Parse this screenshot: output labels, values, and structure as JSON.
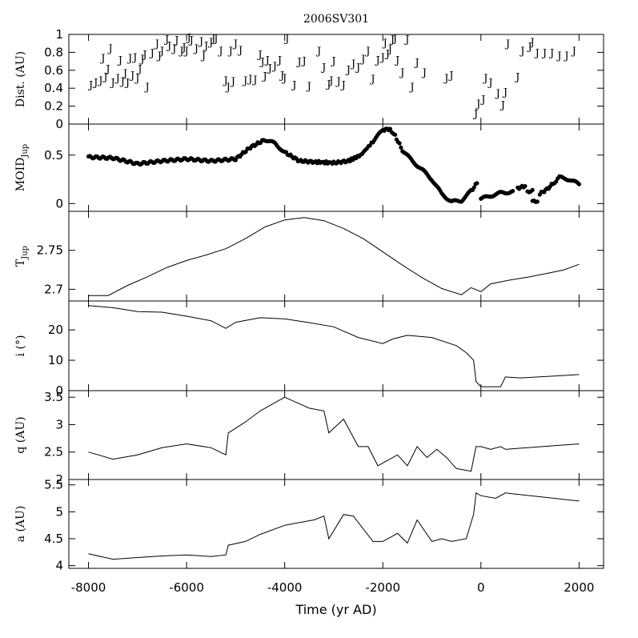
{
  "chart_data": {
    "title": "2006SV301",
    "xlabel": "Time (yr AD)",
    "xlim": [
      -8400,
      2500
    ],
    "xticks": [
      -8000,
      -6000,
      -4000,
      -2000,
      0,
      2000
    ],
    "xtick_labels": [
      "-8000",
      "-6000",
      "-4000",
      "-2000",
      "0",
      "2000"
    ],
    "panels": [
      {
        "id": "dist",
        "type": "scatter",
        "marker": "J",
        "ylabel": "Dist. (AU)",
        "ylim": [
          0,
          1
        ],
        "yticks": [
          0,
          0.2,
          0.4,
          0.6,
          0.8,
          1
        ],
        "ytick_labels": [
          "0",
          "0.2",
          "0.4",
          "0.6",
          "0.8",
          "1"
        ],
        "points": [
          [
            -7950,
            0.44
          ],
          [
            -7850,
            0.47
          ],
          [
            -7750,
            0.49
          ],
          [
            -7650,
            0.53
          ],
          [
            -7600,
            0.62
          ],
          [
            -7500,
            0.47
          ],
          [
            -7400,
            0.52
          ],
          [
            -7300,
            0.48
          ],
          [
            -7200,
            0.47
          ],
          [
            -7100,
            0.55
          ],
          [
            -7000,
            0.52
          ],
          [
            -6900,
            0.73
          ],
          [
            -6800,
            0.42
          ],
          [
            -7700,
            0.74
          ],
          [
            -7550,
            0.85
          ],
          [
            -7350,
            0.72
          ],
          [
            -7250,
            0.57
          ],
          [
            -7150,
            0.74
          ],
          [
            -7050,
            0.75
          ],
          [
            -6950,
            0.62
          ],
          [
            -6850,
            0.78
          ],
          [
            -6700,
            0.8
          ],
          [
            -6600,
            0.9
          ],
          [
            -6550,
            0.77
          ],
          [
            -6500,
            0.82
          ],
          [
            -6400,
            0.95
          ],
          [
            -6350,
            0.88
          ],
          [
            -6250,
            0.85
          ],
          [
            -6200,
            0.94
          ],
          [
            -6100,
            0.82
          ],
          [
            -6050,
            0.86
          ],
          [
            -6000,
            0.82
          ],
          [
            -5950,
            0.97
          ],
          [
            -5900,
            0.94
          ],
          [
            -5800,
            0.85
          ],
          [
            -5700,
            0.93
          ],
          [
            -5650,
            0.77
          ],
          [
            -5600,
            0.88
          ],
          [
            -5500,
            0.92
          ],
          [
            -5450,
            0.96
          ],
          [
            -5400,
            0.96
          ],
          [
            -5300,
            0.82
          ],
          [
            -5200,
            0.49
          ],
          [
            -5150,
            0.42
          ],
          [
            -5100,
            0.82
          ],
          [
            -5050,
            0.48
          ],
          [
            -5000,
            0.9
          ],
          [
            -4900,
            0.83
          ],
          [
            -4800,
            0.49
          ],
          [
            -4700,
            0.51
          ],
          [
            -4600,
            0.5
          ],
          [
            -4500,
            0.78
          ],
          [
            -4450,
            0.7
          ],
          [
            -4400,
            0.54
          ],
          [
            -4350,
            0.72
          ],
          [
            -4300,
            0.63
          ],
          [
            -4200,
            0.65
          ],
          [
            -4100,
            0.72
          ],
          [
            -4050,
            0.55
          ],
          [
            -4000,
            0.52
          ],
          [
            -3950,
            0.96
          ],
          [
            -3800,
            0.44
          ],
          [
            -3700,
            0.7
          ],
          [
            -3600,
            0.71
          ],
          [
            -3500,
            0.43
          ],
          [
            -3300,
            0.82
          ],
          [
            -3200,
            0.64
          ],
          [
            -3100,
            0.45
          ],
          [
            -3050,
            0.49
          ],
          [
            -3000,
            0.71
          ],
          [
            -2900,
            0.48
          ],
          [
            -2800,
            0.44
          ],
          [
            -2700,
            0.61
          ],
          [
            -2600,
            0.68
          ],
          [
            -2500,
            0.64
          ],
          [
            -2400,
            0.73
          ],
          [
            -2300,
            0.82
          ],
          [
            -2200,
            0.51
          ],
          [
            -2100,
            0.72
          ],
          [
            -2000,
            0.75
          ],
          [
            -1950,
            0.91
          ],
          [
            -1900,
            0.79
          ],
          [
            -1850,
            0.84
          ],
          [
            -1800,
            0.95
          ],
          [
            -1750,
            0.96
          ],
          [
            -1700,
            0.72
          ],
          [
            -1600,
            0.58
          ],
          [
            -1500,
            0.95
          ],
          [
            -1400,
            0.42
          ],
          [
            -1300,
            0.69
          ],
          [
            -1150,
            0.58
          ],
          [
            -700,
            0.52
          ],
          [
            -600,
            0.55
          ],
          [
            -100,
            0.12
          ],
          [
            -50,
            0.23
          ],
          [
            50,
            0.28
          ],
          [
            100,
            0.52
          ],
          [
            200,
            0.47
          ],
          [
            350,
            0.35
          ],
          [
            450,
            0.22
          ],
          [
            500,
            0.36
          ],
          [
            550,
            0.9
          ],
          [
            750,
            0.53
          ],
          [
            850,
            0.82
          ],
          [
            1000,
            0.87
          ],
          [
            1050,
            0.92
          ],
          [
            1150,
            0.8
          ],
          [
            1300,
            0.8
          ],
          [
            1450,
            0.8
          ],
          [
            1600,
            0.77
          ],
          [
            1750,
            0.77
          ],
          [
            1900,
            0.82
          ]
        ]
      },
      {
        "id": "moid",
        "type": "scatter",
        "marker": "dot",
        "ylabel": "MOID",
        "ylabel_sub": "Jup",
        "ylim": [
          -0.08,
          0.82
        ],
        "yticks": [
          0,
          0.5
        ],
        "ytick_labels": [
          "0",
          "0.5"
        ],
        "segments": [
          [
            [
              -8000,
              0.48
            ],
            [
              -7500,
              0.47
            ],
            [
              -7000,
              0.41
            ],
            [
              -6500,
              0.44
            ],
            [
              -6000,
              0.46
            ],
            [
              -5500,
              0.44
            ],
            [
              -5000,
              0.46
            ],
            [
              -4700,
              0.58
            ],
            [
              -4400,
              0.66
            ],
            [
              -4200,
              0.62
            ],
            [
              -4000,
              0.53
            ],
            [
              -3700,
              0.44
            ],
            [
              -3400,
              0.43
            ],
            [
              -3000,
              0.42
            ],
            [
              -2700,
              0.44
            ],
            [
              -2450,
              0.5
            ],
            [
              -2200,
              0.64
            ],
            [
              -2000,
              0.76
            ],
            [
              -1850,
              0.77
            ],
            [
              -1750,
              0.7
            ],
            [
              -1600,
              0.55
            ],
            [
              -1400,
              0.44
            ],
            [
              -1200,
              0.35
            ],
            [
              -1000,
              0.25
            ],
            [
              -800,
              0.1
            ],
            [
              -600,
              0.02
            ],
            [
              -400,
              0.03
            ],
            [
              -200,
              0.13
            ],
            [
              -80,
              0.21
            ]
          ],
          [
            [
              0,
              0.05
            ],
            [
              200,
              0.08
            ],
            [
              400,
              0.11
            ],
            [
              600,
              0.12
            ],
            [
              650,
              0.13
            ]
          ],
          [
            [
              750,
              0.16
            ],
            [
              900,
              0.18
            ]
          ],
          [
            [
              950,
              0.12
            ],
            [
              1050,
              0.14
            ]
          ],
          [
            [
              1050,
              0.02
            ],
            [
              1150,
              0.02
            ]
          ],
          [
            [
              1200,
              0.1
            ],
            [
              1350,
              0.15
            ],
            [
              1500,
              0.22
            ],
            [
              1600,
              0.27
            ],
            [
              1800,
              0.25
            ],
            [
              2000,
              0.2
            ]
          ]
        ]
      },
      {
        "id": "tjup",
        "type": "line",
        "ylabel": "T",
        "ylabel_sub": "Jup",
        "ylim": [
          2.685,
          2.8
        ],
        "yticks": [
          2.7,
          2.75
        ],
        "ytick_labels": [
          "2.7",
          "2.75"
        ],
        "x": [
          -8000,
          -7600,
          -7200,
          -6800,
          -6400,
          -6000,
          -5600,
          -5200,
          -4800,
          -4400,
          -4000,
          -3600,
          -3200,
          -2800,
          -2400,
          -2000,
          -1600,
          -1200,
          -800,
          -400,
          -200,
          0,
          200,
          600,
          1000,
          1400,
          1700,
          2000
        ],
        "y": [
          2.692,
          2.692,
          2.705,
          2.716,
          2.728,
          2.737,
          2.744,
          2.752,
          2.765,
          2.78,
          2.789,
          2.792,
          2.788,
          2.778,
          2.765,
          2.748,
          2.731,
          2.715,
          2.701,
          2.693,
          2.702,
          2.697,
          2.707,
          2.712,
          2.716,
          2.721,
          2.725,
          2.732
        ]
      },
      {
        "id": "incl",
        "type": "line",
        "ylabel": "i (°)",
        "ylim": [
          0,
          29.5
        ],
        "yticks": [
          0,
          10,
          20
        ],
        "ytick_labels": [
          "0",
          "10",
          "20"
        ],
        "x": [
          -8000,
          -7500,
          -7000,
          -6500,
          -6000,
          -5500,
          -5200,
          -5000,
          -4500,
          -4000,
          -3500,
          -3000,
          -2500,
          -2000,
          -1800,
          -1500,
          -1000,
          -500,
          -300,
          -150,
          -100,
          0,
          400,
          500,
          800,
          1500,
          2000
        ],
        "y": [
          28,
          27.3,
          26,
          25.8,
          24.5,
          23,
          20.5,
          22.5,
          24,
          23.6,
          22.4,
          21,
          17.5,
          15.5,
          17,
          18.2,
          17.5,
          14.8,
          12.5,
          10,
          3,
          1.3,
          1.3,
          4.5,
          4.2,
          4.8,
          5.3
        ]
      },
      {
        "id": "q",
        "type": "line",
        "ylabel": "q (AU)",
        "ylim": [
          2,
          3.62
        ],
        "yticks": [
          2,
          2.5,
          3,
          3.5
        ],
        "ytick_labels": [
          "2",
          "2.5",
          "3",
          "3.5"
        ],
        "x": [
          -8000,
          -7500,
          -7000,
          -6500,
          -6000,
          -5500,
          -5200,
          -5150,
          -4800,
          -4500,
          -4000,
          -3800,
          -3500,
          -3200,
          -3100,
          -2800,
          -2500,
          -2300,
          -2100,
          -2000,
          -1700,
          -1500,
          -1300,
          -1100,
          -900,
          -700,
          -500,
          -200,
          -100,
          0,
          200,
          400,
          500,
          2000
        ],
        "y": [
          2.5,
          2.37,
          2.45,
          2.58,
          2.65,
          2.58,
          2.45,
          2.85,
          3.05,
          3.25,
          3.5,
          3.42,
          3.3,
          3.25,
          2.85,
          3.1,
          2.6,
          2.6,
          2.25,
          2.3,
          2.45,
          2.25,
          2.6,
          2.4,
          2.55,
          2.4,
          2.2,
          2.15,
          2.6,
          2.6,
          2.55,
          2.6,
          2.55,
          2.65
        ]
      },
      {
        "id": "a",
        "type": "line",
        "ylabel": "a (AU)",
        "ylim": [
          3.95,
          5.6
        ],
        "yticks": [
          4,
          4.5,
          5,
          5.5
        ],
        "ytick_labels": [
          "4",
          "4.5",
          "5",
          "5.5"
        ],
        "x": [
          -8000,
          -7500,
          -7000,
          -6500,
          -6000,
          -5500,
          -5200,
          -5150,
          -4800,
          -4500,
          -4000,
          -3700,
          -3400,
          -3200,
          -3100,
          -2800,
          -2600,
          -2200,
          -2000,
          -1700,
          -1500,
          -1300,
          -1000,
          -800,
          -600,
          -300,
          -150,
          -100,
          0,
          300,
          500,
          2000
        ],
        "y": [
          4.22,
          4.12,
          4.15,
          4.18,
          4.2,
          4.17,
          4.2,
          4.38,
          4.45,
          4.58,
          4.75,
          4.8,
          4.85,
          4.92,
          4.5,
          4.95,
          4.92,
          4.45,
          4.45,
          4.6,
          4.42,
          4.85,
          4.45,
          4.5,
          4.45,
          4.5,
          4.95,
          5.35,
          5.3,
          5.25,
          5.35,
          5.2
        ]
      }
    ]
  }
}
